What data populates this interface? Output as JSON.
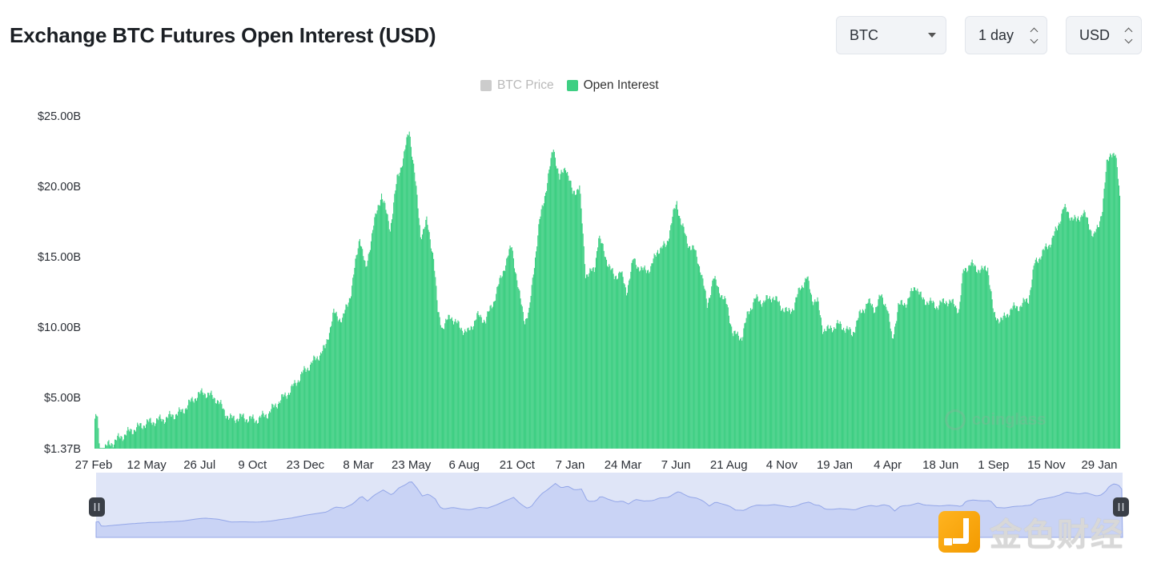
{
  "header": {
    "title": "Exchange BTC Futures Open Interest (USD)",
    "coin_select": "BTC",
    "interval_select": "1 day",
    "unit_select": "USD"
  },
  "legend": {
    "price_label": "BTC Price",
    "oi_label": "Open Interest",
    "price_color": "#cccccc",
    "oi_color": "#3ecf83"
  },
  "watermarks": {
    "chart_brand": "coinglass",
    "corner_brand": "金色财经"
  },
  "chart_data": {
    "type": "bar",
    "ylim": [
      1.37,
      25
    ],
    "y_unit": "B USD",
    "yticks": [
      "$1.37B",
      "$5.00B",
      "$10.00B",
      "$15.00B",
      "$20.00B",
      "$25.00B"
    ],
    "ytick_values": [
      1.37,
      5,
      10,
      15,
      20,
      25
    ],
    "xticks": [
      "27 Feb",
      "12 May",
      "26 Jul",
      "9 Oct",
      "23 Dec",
      "8 Mar",
      "23 May",
      "6 Aug",
      "21 Oct",
      "7 Jan",
      "24 Mar",
      "7 Jun",
      "21 Aug",
      "4 Nov",
      "19 Jan",
      "4 Apr",
      "18 Jun",
      "1 Sep",
      "15 Nov",
      "29 Jan"
    ],
    "series": [
      {
        "name": "Open Interest",
        "color": "#3ecf83",
        "points": [
          [
            0,
            3.5
          ],
          [
            3,
            3.6
          ],
          [
            5,
            1.5
          ],
          [
            10,
            1.4
          ],
          [
            20,
            1.8
          ],
          [
            40,
            2.6
          ],
          [
            60,
            3.2
          ],
          [
            80,
            3.5
          ],
          [
            100,
            4.0
          ],
          [
            115,
            5.0
          ],
          [
            125,
            5.4
          ],
          [
            140,
            4.9
          ],
          [
            155,
            3.5
          ],
          [
            170,
            3.6
          ],
          [
            185,
            3.4
          ],
          [
            200,
            3.9
          ],
          [
            210,
            4.6
          ],
          [
            225,
            5.5
          ],
          [
            240,
            6.8
          ],
          [
            255,
            7.8
          ],
          [
            265,
            8.5
          ],
          [
            275,
            11.0
          ],
          [
            285,
            10.5
          ],
          [
            295,
            12.5
          ],
          [
            305,
            16.5
          ],
          [
            312,
            14.0
          ],
          [
            320,
            17.0
          ],
          [
            330,
            19.5
          ],
          [
            340,
            17.0
          ],
          [
            348,
            20.5
          ],
          [
            355,
            22.0
          ],
          [
            362,
            24.0
          ],
          [
            368,
            21.0
          ],
          [
            375,
            16.5
          ],
          [
            382,
            17.5
          ],
          [
            390,
            15.0
          ],
          [
            395,
            11.0
          ],
          [
            400,
            10.0
          ],
          [
            410,
            10.8
          ],
          [
            420,
            10.0
          ],
          [
            430,
            9.6
          ],
          [
            440,
            10.8
          ],
          [
            450,
            10.5
          ],
          [
            460,
            12.0
          ],
          [
            470,
            14.0
          ],
          [
            480,
            15.8
          ],
          [
            488,
            12.5
          ],
          [
            495,
            10.5
          ],
          [
            500,
            11.0
          ],
          [
            505,
            14.0
          ],
          [
            512,
            17.5
          ],
          [
            520,
            20.0
          ],
          [
            528,
            22.8
          ],
          [
            535,
            20.5
          ],
          [
            542,
            21.5
          ],
          [
            550,
            19.5
          ],
          [
            558,
            20.0
          ],
          [
            565,
            13.8
          ],
          [
            575,
            14.0
          ],
          [
            580,
            16.5
          ],
          [
            588,
            15.0
          ],
          [
            598,
            13.5
          ],
          [
            605,
            14.0
          ],
          [
            612,
            12.5
          ],
          [
            620,
            14.8
          ],
          [
            630,
            14.0
          ],
          [
            640,
            14.2
          ],
          [
            648,
            15.5
          ],
          [
            658,
            15.8
          ],
          [
            665,
            17.8
          ],
          [
            670,
            18.8
          ],
          [
            675,
            17.5
          ],
          [
            682,
            16.0
          ],
          [
            690,
            15.5
          ],
          [
            698,
            14.0
          ],
          [
            705,
            11.5
          ],
          [
            712,
            13.5
          ],
          [
            720,
            12.5
          ],
          [
            728,
            11.5
          ],
          [
            735,
            9.5
          ],
          [
            745,
            9.3
          ],
          [
            752,
            11.0
          ],
          [
            760,
            12.0
          ],
          [
            770,
            11.8
          ],
          [
            780,
            12.2
          ],
          [
            790,
            11.5
          ],
          [
            798,
            11.0
          ],
          [
            805,
            11.5
          ],
          [
            812,
            12.8
          ],
          [
            820,
            13.5
          ],
          [
            826,
            12.0
          ],
          [
            832,
            11.8
          ],
          [
            838,
            9.9
          ],
          [
            845,
            9.8
          ],
          [
            855,
            10.2
          ],
          [
            865,
            9.9
          ],
          [
            872,
            9.5
          ],
          [
            880,
            10.8
          ],
          [
            890,
            11.8
          ],
          [
            898,
            11.3
          ],
          [
            905,
            12.2
          ],
          [
            912,
            11.5
          ],
          [
            918,
            9.0
          ],
          [
            925,
            11.5
          ],
          [
            935,
            11.8
          ],
          [
            945,
            13.0
          ],
          [
            952,
            12.0
          ],
          [
            960,
            11.8
          ],
          [
            970,
            11.5
          ],
          [
            980,
            11.9
          ],
          [
            990,
            11.6
          ],
          [
            995,
            11.2
          ],
          [
            1000,
            14.0
          ],
          [
            1008,
            14.5
          ],
          [
            1015,
            14.2
          ],
          [
            1022,
            14.0
          ],
          [
            1028,
            14.3
          ],
          [
            1035,
            10.8
          ],
          [
            1045,
            10.5
          ],
          [
            1055,
            11.3
          ],
          [
            1065,
            11.5
          ],
          [
            1075,
            12.0
          ],
          [
            1082,
            14.5
          ],
          [
            1090,
            15.2
          ],
          [
            1100,
            16.0
          ],
          [
            1108,
            17.0
          ],
          [
            1115,
            18.5
          ],
          [
            1122,
            18.0
          ],
          [
            1130,
            17.5
          ],
          [
            1138,
            18.2
          ],
          [
            1145,
            17.2
          ],
          [
            1150,
            16.5
          ],
          [
            1155,
            17.0
          ],
          [
            1160,
            18.5
          ],
          [
            1165,
            21.5
          ],
          [
            1170,
            22.5
          ],
          [
            1175,
            22.2
          ],
          [
            1179,
            20.0
          ],
          [
            1180,
            19.2
          ]
        ]
      },
      {
        "name": "BTC Price",
        "color": "#cccccc",
        "points": []
      }
    ],
    "legend_position": "top-center",
    "grid": false
  },
  "navigator": {
    "handle_left": "left",
    "handle_right": "right"
  }
}
